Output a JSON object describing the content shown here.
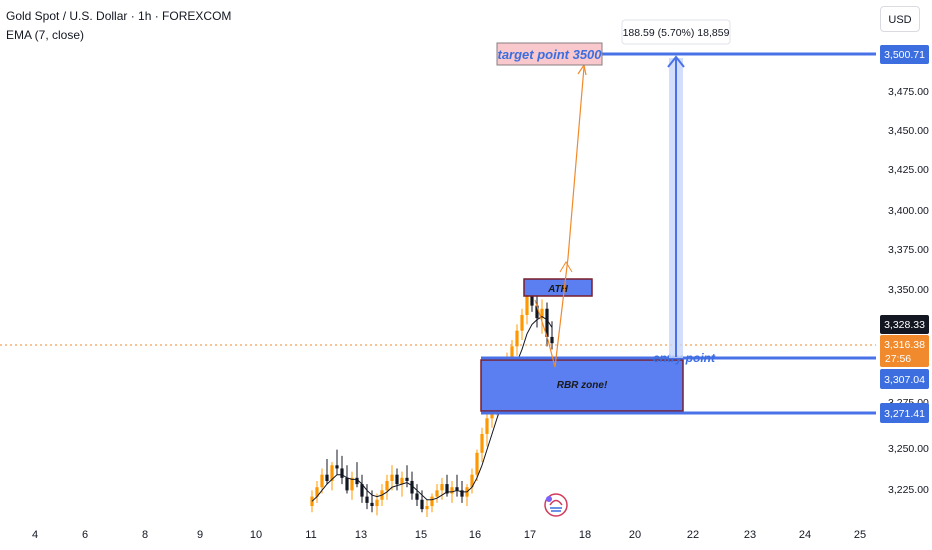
{
  "header": {
    "symbol": "Gold Spot / U.S. Dollar · 1h · FOREXCOM",
    "indicator": "EMA (7, close)",
    "currency": "USD"
  },
  "colors": {
    "candle_up": "#ff9800",
    "candle_down": "#131722",
    "ema": "#131722",
    "zone_fill": "#5b7ff0",
    "zone_border": "#7a1f2b",
    "line_blue": "#4a72e8",
    "arrow": "#f08a2c",
    "price_black": "#131722",
    "price_orange": "#f08a2c",
    "price_blue": "#3c6ee0",
    "target_bg": "#f8c8cc"
  },
  "chart_data": {
    "type": "candlestick",
    "x_ticks": [
      "4",
      "6",
      "8",
      "9",
      "10",
      "11",
      "13",
      "15",
      "16",
      "17",
      "18",
      "20",
      "22",
      "23",
      "24",
      "25"
    ],
    "y_ticks": [
      "3,475.00",
      "3,450.00",
      "3,425.00",
      "3,400.00",
      "3,375.00",
      "3,350.00",
      "3,250.00",
      "3,225.00"
    ],
    "y_hidden_tick": "3,275.00",
    "ylim": [
      3205,
      3515
    ],
    "price_labels": {
      "target": "3,500.71",
      "current": "3,328.33",
      "last": "3,316.38",
      "countdown": "27:56",
      "entry": "3,307.04",
      "zone_low": "3,271.41"
    },
    "annotations": {
      "target_text": "target point 3500",
      "ath_text": "ATH",
      "rbr_text": "RBR zone!",
      "entry_text": "entry point",
      "measure_text": "188.59 (5.70%) 18,859"
    },
    "candles": [
      [
        3212,
        3222,
        3208,
        3218
      ],
      [
        3218,
        3228,
        3214,
        3224
      ],
      [
        3224,
        3236,
        3220,
        3232
      ],
      [
        3232,
        3242,
        3226,
        3228
      ],
      [
        3228,
        3240,
        3222,
        3238
      ],
      [
        3238,
        3248,
        3232,
        3236
      ],
      [
        3236,
        3244,
        3226,
        3230
      ],
      [
        3230,
        3238,
        3220,
        3222
      ],
      [
        3222,
        3234,
        3216,
        3230
      ],
      [
        3230,
        3240,
        3224,
        3226
      ],
      [
        3226,
        3232,
        3214,
        3218
      ],
      [
        3218,
        3226,
        3210,
        3214
      ],
      [
        3214,
        3222,
        3208,
        3212
      ],
      [
        3212,
        3220,
        3206,
        3216
      ],
      [
        3216,
        3226,
        3212,
        3222
      ],
      [
        3222,
        3232,
        3216,
        3228
      ],
      [
        3228,
        3238,
        3222,
        3232
      ],
      [
        3232,
        3236,
        3222,
        3226
      ],
      [
        3226,
        3234,
        3218,
        3230
      ],
      [
        3230,
        3238,
        3224,
        3228
      ],
      [
        3228,
        3234,
        3216,
        3220
      ],
      [
        3220,
        3226,
        3212,
        3216
      ],
      [
        3216,
        3222,
        3208,
        3210
      ],
      [
        3210,
        3216,
        3205,
        3212
      ],
      [
        3212,
        3220,
        3208,
        3218
      ],
      [
        3218,
        3226,
        3214,
        3222
      ],
      [
        3222,
        3230,
        3216,
        3226
      ],
      [
        3226,
        3232,
        3218,
        3220
      ],
      [
        3220,
        3228,
        3214,
        3224
      ],
      [
        3224,
        3232,
        3218,
        3222
      ],
      [
        3222,
        3228,
        3214,
        3218
      ],
      [
        3218,
        3226,
        3212,
        3224
      ],
      [
        3224,
        3236,
        3220,
        3232
      ],
      [
        3232,
        3248,
        3228,
        3246
      ],
      [
        3246,
        3262,
        3240,
        3258
      ],
      [
        3258,
        3272,
        3250,
        3268
      ],
      [
        3268,
        3282,
        3262,
        3278
      ],
      [
        3278,
        3290,
        3270,
        3286
      ],
      [
        3286,
        3300,
        3280,
        3296
      ],
      [
        3296,
        3310,
        3290,
        3306
      ],
      [
        3306,
        3318,
        3300,
        3314
      ],
      [
        3314,
        3328,
        3308,
        3324
      ],
      [
        3324,
        3338,
        3318,
        3334
      ],
      [
        3334,
        3350,
        3328,
        3346
      ],
      [
        3346,
        3356,
        3336,
        3340
      ],
      [
        3340,
        3348,
        3326,
        3332
      ],
      [
        3332,
        3344,
        3322,
        3338
      ],
      [
        3338,
        3342,
        3314,
        3320
      ],
      [
        3320,
        3330,
        3312,
        3316
      ]
    ],
    "ema": [
      3215,
      3218,
      3222,
      3226,
      3229,
      3232,
      3232,
      3230,
      3229,
      3229,
      3226,
      3222,
      3219,
      3218,
      3219,
      3221,
      3224,
      3225,
      3226,
      3227,
      3225,
      3222,
      3219,
      3216,
      3216,
      3217,
      3219,
      3221,
      3221,
      3222,
      3221,
      3221,
      3224,
      3230,
      3238,
      3248,
      3258,
      3268,
      3277,
      3287,
      3296,
      3304,
      3312,
      3322,
      3328,
      3331,
      3333,
      3331,
      3326
    ]
  }
}
